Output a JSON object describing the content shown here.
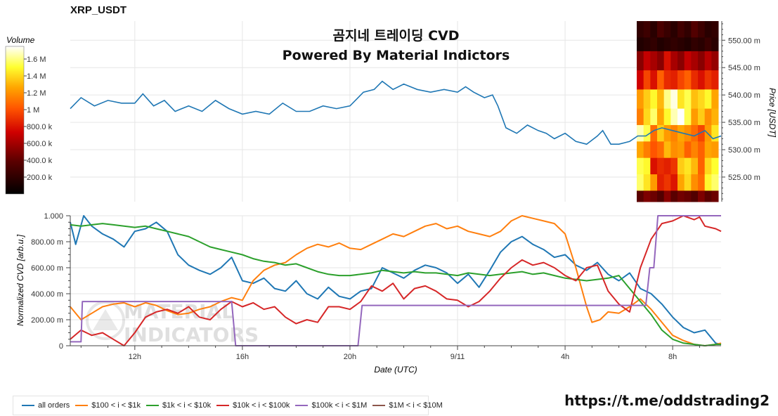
{
  "header": {
    "symbol": "XRP_USDT",
    "title_line1": "곰지네 트레이딩 CVD",
    "title_line2": "Powered By Material Indictors",
    "link": "https://t.me/oddstrading2"
  },
  "watermark": {
    "line1": "MATERIAL",
    "line2": "INDICATORS"
  },
  "colorbar": {
    "label": "Volume",
    "ticks": [
      "1.6 M",
      "1.4 M",
      "1.2 M",
      "1 M",
      "800.0 k",
      "600.0 k",
      "400.0 k",
      "200.0 k"
    ],
    "tick_values": [
      1600000,
      1400000,
      1200000,
      1000000,
      800000,
      600000,
      400000,
      200000
    ],
    "max": 1750000
  },
  "chart_data": [
    {
      "type": "line",
      "name": "price",
      "ylabel": "Price [USDT]",
      "ylim": [
        520.5,
        553.5
      ],
      "yticks": [
        525,
        530,
        535,
        540,
        545,
        550
      ],
      "ytick_labels": [
        "525.00 m",
        "530.00 m",
        "535.00 m",
        "540.00 m",
        "545.00 m",
        "550.00 m"
      ],
      "xlim_hours": [
        9.6,
        33.8
      ],
      "grid": true,
      "x_hours": [
        9.6,
        10.0,
        10.5,
        11.0,
        11.5,
        12.0,
        12.3,
        12.7,
        13.1,
        13.5,
        14.0,
        14.5,
        15.0,
        15.5,
        16.0,
        16.5,
        17.0,
        17.5,
        18.0,
        18.5,
        19.0,
        19.5,
        20.0,
        20.5,
        20.9,
        21.2,
        21.6,
        22.0,
        22.5,
        23.0,
        23.5,
        24.0,
        24.3,
        24.6,
        25.0,
        25.3,
        25.5,
        25.8,
        26.2,
        26.6,
        27.0,
        27.3,
        27.6,
        28.0,
        28.4,
        28.8,
        29.2,
        29.4,
        29.7,
        30.0,
        30.4,
        30.7,
        31.0,
        31.3,
        31.6,
        32.0,
        32.4,
        32.8,
        33.2,
        33.5,
        33.8
      ],
      "y": [
        537.5,
        539.5,
        538.0,
        539.0,
        538.5,
        538.5,
        540.2,
        538.0,
        539.0,
        537.0,
        538.0,
        537.0,
        539.0,
        537.5,
        536.5,
        537.0,
        536.5,
        538.5,
        537.0,
        537.0,
        538.0,
        537.5,
        538.0,
        540.5,
        541.0,
        542.5,
        541.0,
        542.0,
        541.0,
        540.5,
        541.0,
        540.5,
        541.5,
        540.5,
        539.5,
        540.0,
        538.0,
        534.0,
        533.0,
        534.5,
        533.5,
        533.0,
        532.0,
        533.0,
        531.5,
        531.0,
        532.5,
        533.5,
        531.0,
        531.0,
        531.5,
        532.5,
        532.5,
        533.5,
        534.0,
        533.5,
        533.0,
        532.5,
        533.5,
        532.0,
        532.5
      ]
    },
    {
      "type": "line",
      "name": "cvd",
      "xlabel": "Date (UTC)",
      "ylabel": "Normalized CVD [arb.u.]",
      "ylim": [
        0,
        1.0
      ],
      "yticks": [
        0,
        0.2,
        0.4,
        0.6,
        0.8,
        1.0
      ],
      "ytick_labels": [
        "0",
        "200.00 m",
        "400.00 m",
        "600.00 m",
        "800.00 m",
        "1.000"
      ],
      "xlim_hours": [
        9.6,
        33.8
      ],
      "xticks_hours": [
        12,
        16,
        20,
        24,
        28,
        32
      ],
      "xtick_labels": [
        "12h",
        "16h",
        "20h",
        "9/11",
        "4h",
        "8h"
      ],
      "grid": true,
      "legend_position": "bottom",
      "series": [
        {
          "name": "all orders",
          "color": "#1f77b4",
          "x": [
            9.6,
            9.8,
            10.1,
            10.4,
            10.8,
            11.2,
            11.6,
            12.0,
            12.4,
            12.8,
            13.2,
            13.6,
            14.0,
            14.4,
            14.8,
            15.2,
            15.6,
            16.0,
            16.4,
            16.8,
            17.2,
            17.6,
            18.0,
            18.4,
            18.8,
            19.2,
            19.6,
            20.0,
            20.4,
            20.8,
            21.2,
            21.6,
            22.0,
            22.4,
            22.8,
            23.2,
            23.6,
            24.0,
            24.4,
            24.8,
            25.2,
            25.6,
            26.0,
            26.4,
            26.8,
            27.2,
            27.6,
            28.0,
            28.4,
            28.8,
            29.2,
            29.6,
            30.0,
            30.4,
            30.8,
            31.2,
            31.6,
            32.0,
            32.4,
            32.8,
            33.2,
            33.6,
            33.8
          ],
          "y": [
            0.95,
            0.78,
            1.0,
            0.92,
            0.86,
            0.82,
            0.76,
            0.88,
            0.9,
            0.95,
            0.88,
            0.7,
            0.62,
            0.58,
            0.55,
            0.6,
            0.68,
            0.5,
            0.48,
            0.52,
            0.44,
            0.42,
            0.5,
            0.4,
            0.36,
            0.45,
            0.38,
            0.36,
            0.42,
            0.44,
            0.6,
            0.56,
            0.52,
            0.58,
            0.62,
            0.6,
            0.56,
            0.48,
            0.55,
            0.45,
            0.58,
            0.72,
            0.8,
            0.84,
            0.78,
            0.74,
            0.68,
            0.7,
            0.62,
            0.58,
            0.64,
            0.55,
            0.5,
            0.56,
            0.44,
            0.4,
            0.32,
            0.22,
            0.14,
            0.1,
            0.12,
            0.02,
            0.01
          ]
        },
        {
          "name": "$100 < i < $1k",
          "color": "#ff7f0e",
          "x": [
            9.6,
            10.0,
            10.4,
            10.8,
            11.2,
            11.6,
            12.0,
            12.4,
            12.8,
            13.2,
            13.6,
            14.0,
            14.4,
            14.8,
            15.2,
            15.6,
            16.0,
            16.4,
            16.8,
            17.2,
            17.6,
            18.0,
            18.4,
            18.8,
            19.2,
            19.6,
            20.0,
            20.4,
            20.8,
            21.2,
            21.6,
            22.0,
            22.4,
            22.8,
            23.2,
            23.6,
            24.0,
            24.4,
            24.8,
            25.2,
            25.6,
            26.0,
            26.4,
            26.8,
            27.2,
            27.6,
            28.0,
            28.4,
            28.8,
            29.0,
            29.3,
            29.6,
            30.0,
            30.4,
            30.8,
            31.2,
            31.6,
            32.0,
            32.4,
            32.8,
            33.2,
            33.6,
            33.8
          ],
          "y": [
            0.3,
            0.2,
            0.25,
            0.3,
            0.32,
            0.33,
            0.3,
            0.33,
            0.31,
            0.27,
            0.24,
            0.25,
            0.28,
            0.3,
            0.34,
            0.37,
            0.35,
            0.5,
            0.58,
            0.62,
            0.64,
            0.7,
            0.75,
            0.78,
            0.76,
            0.79,
            0.75,
            0.74,
            0.78,
            0.82,
            0.86,
            0.84,
            0.88,
            0.92,
            0.94,
            0.9,
            0.92,
            0.88,
            0.86,
            0.84,
            0.88,
            0.96,
            1.0,
            0.98,
            0.96,
            0.94,
            0.86,
            0.6,
            0.3,
            0.18,
            0.2,
            0.26,
            0.25,
            0.3,
            0.36,
            0.28,
            0.18,
            0.08,
            0.04,
            0.01,
            0.0,
            0.01,
            0.02
          ]
        },
        {
          "name": "$1k < i < $10k",
          "color": "#2ca02c",
          "x": [
            9.6,
            10.0,
            10.4,
            10.8,
            11.2,
            11.6,
            12.0,
            12.4,
            12.8,
            13.2,
            13.6,
            14.0,
            14.4,
            14.8,
            15.2,
            15.6,
            16.0,
            16.4,
            16.8,
            17.2,
            17.6,
            18.0,
            18.4,
            18.8,
            19.2,
            19.6,
            20.0,
            20.4,
            20.8,
            21.2,
            21.6,
            22.0,
            22.4,
            22.8,
            23.2,
            23.6,
            24.0,
            24.4,
            24.8,
            25.2,
            25.6,
            26.0,
            26.4,
            26.8,
            27.2,
            27.6,
            28.0,
            28.4,
            28.8,
            29.2,
            29.6,
            30.0,
            30.4,
            30.8,
            31.2,
            31.6,
            32.0,
            32.4,
            32.8,
            33.2,
            33.6,
            33.8
          ],
          "y": [
            0.93,
            0.92,
            0.93,
            0.94,
            0.93,
            0.92,
            0.91,
            0.92,
            0.9,
            0.88,
            0.86,
            0.84,
            0.8,
            0.76,
            0.74,
            0.72,
            0.7,
            0.67,
            0.65,
            0.64,
            0.62,
            0.63,
            0.6,
            0.57,
            0.55,
            0.54,
            0.54,
            0.55,
            0.56,
            0.58,
            0.57,
            0.56,
            0.57,
            0.56,
            0.56,
            0.55,
            0.54,
            0.56,
            0.55,
            0.54,
            0.55,
            0.56,
            0.57,
            0.55,
            0.56,
            0.54,
            0.52,
            0.51,
            0.5,
            0.51,
            0.52,
            0.54,
            0.44,
            0.34,
            0.24,
            0.12,
            0.05,
            0.02,
            0.01,
            0.0,
            0.01,
            0.01
          ]
        },
        {
          "name": "$10k < i < $100k",
          "color": "#d62728",
          "x": [
            9.6,
            10.0,
            10.4,
            10.8,
            11.2,
            11.6,
            12.0,
            12.4,
            12.8,
            13.2,
            13.6,
            14.0,
            14.4,
            14.8,
            15.2,
            15.6,
            16.0,
            16.4,
            16.8,
            17.2,
            17.6,
            18.0,
            18.4,
            18.8,
            19.2,
            19.6,
            20.0,
            20.4,
            20.8,
            21.2,
            21.6,
            22.0,
            22.4,
            22.8,
            23.2,
            23.6,
            24.0,
            24.4,
            24.8,
            25.2,
            25.6,
            26.0,
            26.4,
            26.8,
            27.2,
            27.6,
            28.0,
            28.4,
            28.8,
            29.2,
            29.6,
            30.0,
            30.4,
            30.8,
            31.2,
            31.6,
            32.0,
            32.4,
            32.8,
            33.0,
            33.2,
            33.6,
            33.8
          ],
          "y": [
            0.05,
            0.12,
            0.08,
            0.1,
            0.05,
            0.0,
            0.1,
            0.22,
            0.26,
            0.28,
            0.25,
            0.3,
            0.22,
            0.2,
            0.28,
            0.34,
            0.3,
            0.33,
            0.28,
            0.3,
            0.22,
            0.17,
            0.2,
            0.18,
            0.3,
            0.3,
            0.28,
            0.34,
            0.46,
            0.42,
            0.48,
            0.36,
            0.44,
            0.46,
            0.42,
            0.36,
            0.35,
            0.3,
            0.34,
            0.42,
            0.52,
            0.6,
            0.66,
            0.62,
            0.64,
            0.6,
            0.54,
            0.5,
            0.6,
            0.62,
            0.42,
            0.32,
            0.26,
            0.6,
            0.82,
            0.94,
            0.96,
            1.0,
            0.97,
            0.99,
            0.92,
            0.9,
            0.88
          ]
        },
        {
          "name": "$100k < i < $1M",
          "color": "#9467bd",
          "x": [
            9.6,
            10.0,
            10.05,
            15.6,
            15.75,
            20.3,
            20.45,
            31.0,
            31.15,
            31.3,
            31.45,
            33.8
          ],
          "y": [
            0.03,
            0.03,
            0.34,
            0.34,
            0.0,
            0.0,
            0.31,
            0.31,
            0.6,
            0.6,
            1.0,
            1.0
          ]
        },
        {
          "name": "$1M < i < $10M",
          "color": "#8c564b",
          "x": [],
          "y": []
        }
      ]
    },
    {
      "type": "heatmap",
      "name": "volume profile",
      "columns": 12,
      "price_bands": [
        [
          550.5,
          553.5
        ],
        [
          548,
          550.5
        ],
        [
          544.5,
          548
        ],
        [
          541,
          544.5
        ],
        [
          537.5,
          541
        ],
        [
          534.5,
          537.5
        ],
        [
          531.5,
          534.5
        ],
        [
          528.5,
          531.5
        ],
        [
          525.5,
          528.5
        ],
        [
          522.5,
          525.5
        ],
        [
          520.5,
          522.5
        ]
      ],
      "volume_normalized": [
        [
          0.12,
          0.15,
          0.1,
          0.18,
          0.14,
          0.1,
          0.16,
          0.12,
          0.2,
          0.15,
          0.1,
          0.12
        ],
        [
          0.08,
          0.1,
          0.12,
          0.08,
          0.1,
          0.12,
          0.1,
          0.08,
          0.12,
          0.1,
          0.14,
          0.1
        ],
        [
          0.3,
          0.4,
          0.35,
          0.3,
          0.45,
          0.35,
          0.3,
          0.4,
          0.35,
          0.3,
          0.38,
          0.32
        ],
        [
          0.42,
          0.55,
          0.45,
          0.6,
          0.5,
          0.48,
          0.55,
          0.6,
          0.5,
          0.45,
          0.52,
          0.48
        ],
        [
          0.7,
          0.78,
          0.85,
          0.75,
          0.92,
          0.98,
          0.82,
          0.88,
          0.76,
          0.8,
          0.85,
          0.72
        ],
        [
          0.65,
          0.8,
          0.9,
          0.72,
          0.85,
          0.95,
          1.0,
          0.88,
          0.7,
          0.78,
          0.68,
          0.74
        ],
        [
          0.95,
          0.88,
          0.62,
          0.78,
          0.7,
          0.66,
          0.72,
          0.68,
          0.62,
          0.55,
          0.7,
          0.82
        ],
        [
          0.72,
          0.65,
          0.58,
          0.62,
          0.75,
          0.68,
          0.7,
          0.6,
          0.66,
          0.6,
          0.72,
          0.7
        ],
        [
          0.88,
          0.85,
          0.45,
          0.5,
          0.48,
          0.52,
          0.78,
          0.82,
          0.75,
          0.6,
          0.8,
          0.86
        ],
        [
          0.9,
          0.82,
          0.7,
          0.48,
          0.52,
          0.46,
          0.72,
          0.8,
          0.68,
          0.62,
          0.85,
          0.9
        ],
        [
          0.22,
          0.28,
          0.25,
          0.2,
          0.3,
          0.22,
          0.26,
          0.24,
          0.2,
          0.28,
          0.22,
          0.25
        ]
      ]
    }
  ]
}
